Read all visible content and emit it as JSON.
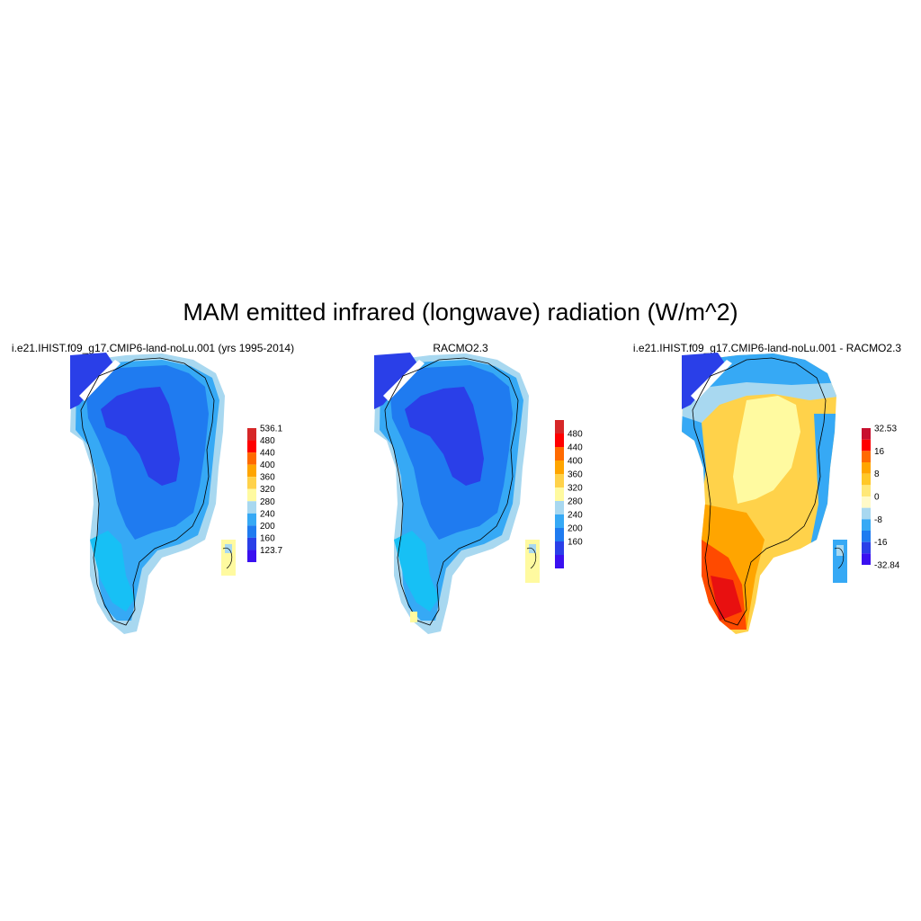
{
  "title": "MAM emitted infrared (longwave) radiation (W/m^2)",
  "panels": [
    {
      "id": "model",
      "title": "i.e21.IHIST.f09_g17.CMIP6-land-noLu.001 (yrs 1995-2014)",
      "colorbar": {
        "labels": [
          "536.1",
          "480",
          "440",
          "400",
          "360",
          "320",
          "280",
          "240",
          "200",
          "160",
          "123.7"
        ],
        "colors": [
          "#d62728",
          "#ff0000",
          "#ff6a00",
          "#ffa500",
          "#ffd24a",
          "#fffaa0",
          "#a8d8f0",
          "#36a9f5",
          "#1f7bf0",
          "#2a3fe8",
          "#3a10f0"
        ]
      }
    },
    {
      "id": "racmo",
      "title": "RACMO2.3",
      "colorbar": {
        "labels": [
          "480",
          "440",
          "400",
          "360",
          "320",
          "280",
          "240",
          "200",
          "160"
        ],
        "colors": [
          "#d62728",
          "#ff0000",
          "#ff6a00",
          "#ffa500",
          "#ffd24a",
          "#fffaa0",
          "#a8d8f0",
          "#36a9f5",
          "#1f7bf0",
          "#2a3fe8",
          "#3a10f0"
        ]
      }
    },
    {
      "id": "diff",
      "title": "i.e21.IHIST.f09_g17.CMIP6-land-noLu.001 - RACMO2.3",
      "colorbar": {
        "labels": [
          "32.53",
          "16",
          "8",
          "0",
          "-8",
          "-16",
          "-32.84"
        ],
        "colors": [
          "#c8102e",
          "#ff0000",
          "#ff6a00",
          "#ffa500",
          "#ffc828",
          "#ffe878",
          "#fffac8",
          "#a8d8f0",
          "#36a9f5",
          "#1f7bf0",
          "#2a3fe8",
          "#3a10f0"
        ]
      }
    }
  ]
}
